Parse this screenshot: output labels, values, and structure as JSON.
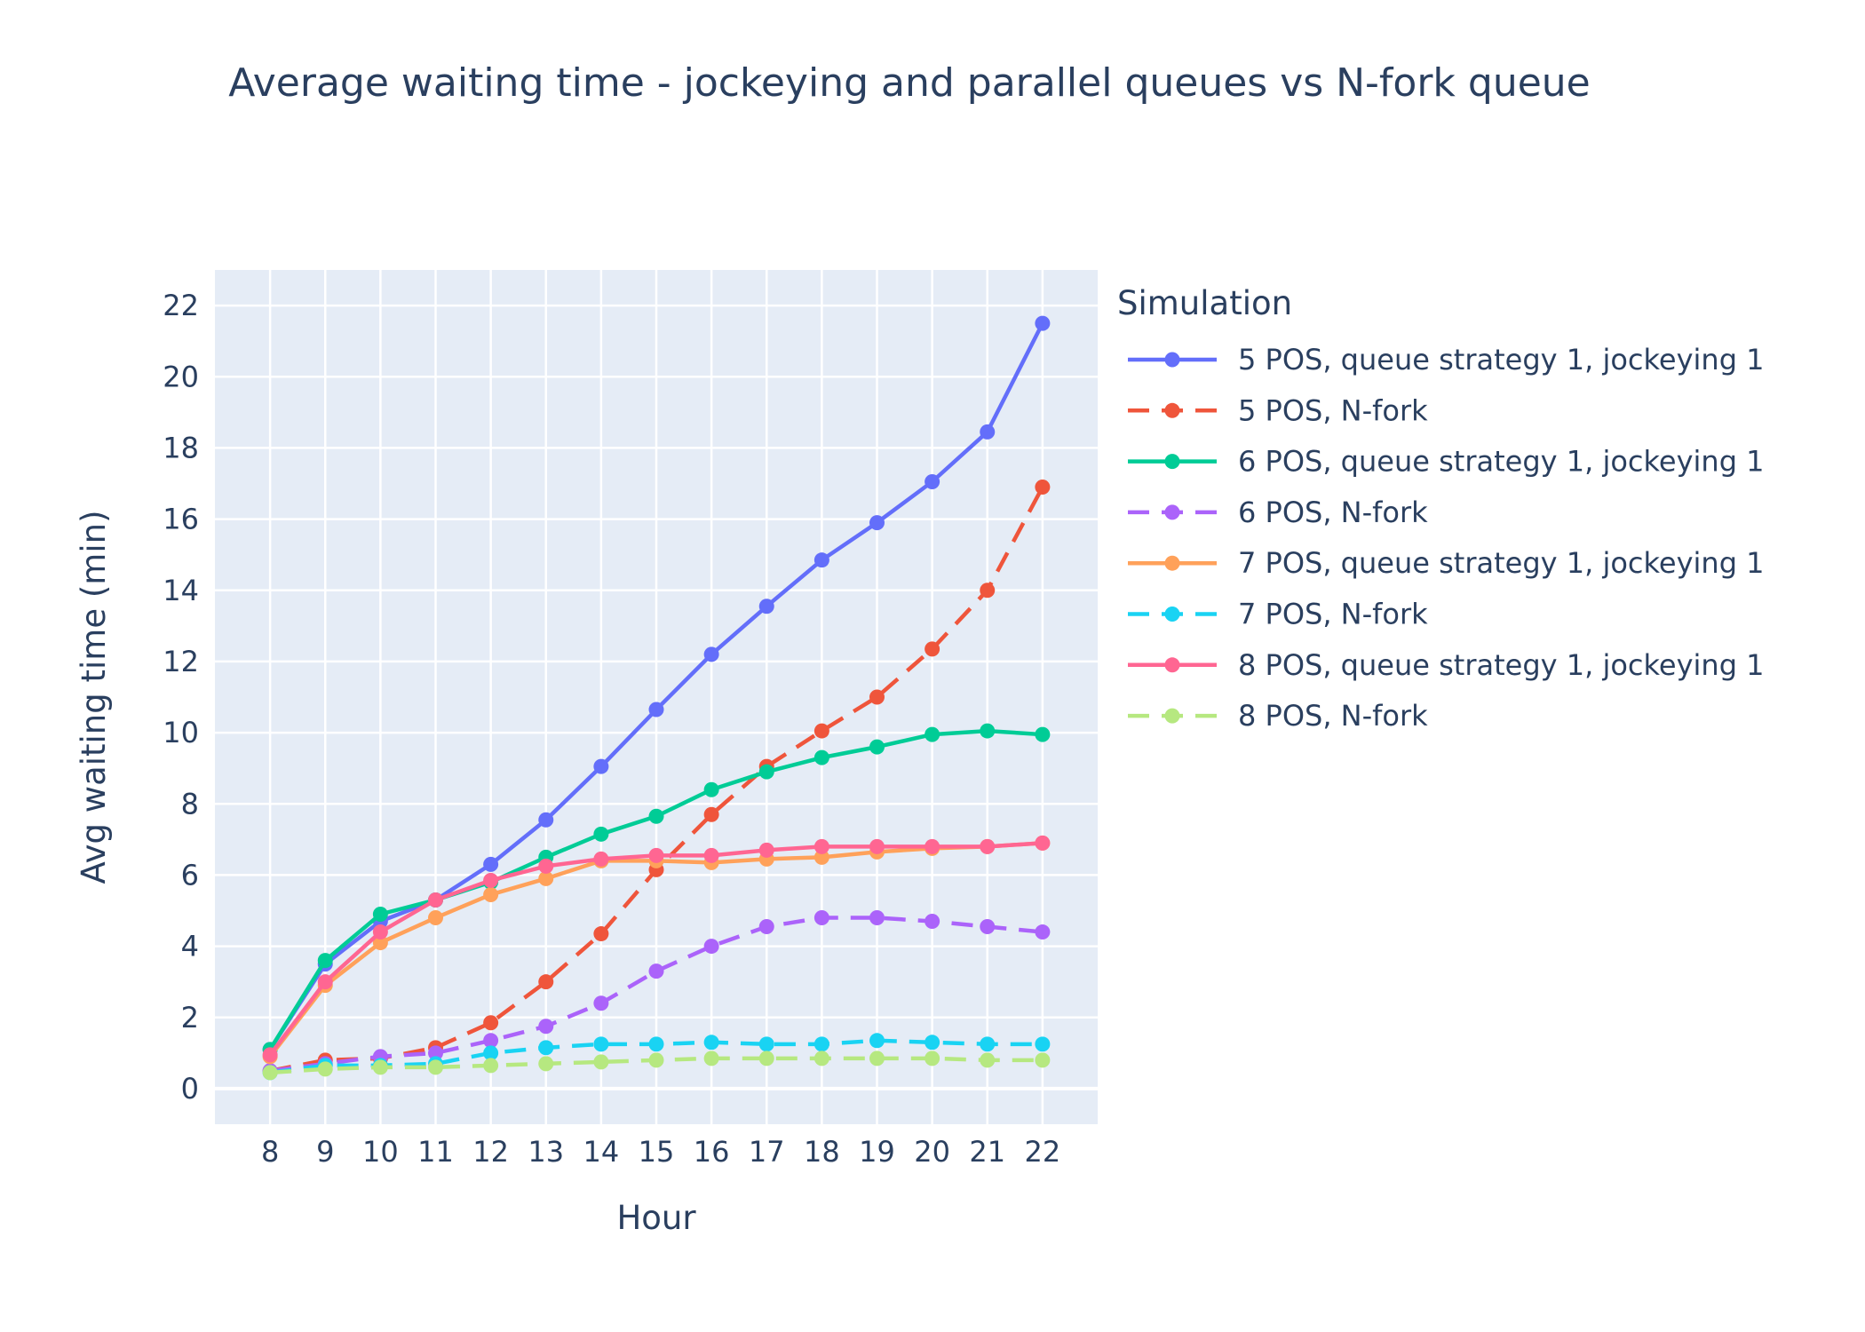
{
  "chart_data": {
    "type": "line",
    "title": "Average waiting time - jockeying and parallel queues vs N-fork queue",
    "xlabel": "Hour",
    "ylabel": "Avg waiting time (min)",
    "x": [
      8,
      9,
      10,
      11,
      12,
      13,
      14,
      15,
      16,
      17,
      18,
      19,
      20,
      21,
      22
    ],
    "xlim": [
      7.0,
      23.0
    ],
    "ylim": [
      -1.0,
      23.0
    ],
    "yticks": [
      0,
      2,
      4,
      6,
      8,
      10,
      12,
      14,
      16,
      18,
      20,
      22
    ],
    "grid": true,
    "legend_title": "Simulation",
    "legend_position": "right",
    "series": [
      {
        "name": "5 POS, queue strategy 1, jockeying 1",
        "color": "#636efa",
        "dash": "solid",
        "values": [
          1.1,
          3.5,
          4.7,
          5.3,
          6.3,
          7.55,
          9.05,
          10.65,
          12.2,
          13.55,
          14.85,
          15.9,
          17.05,
          18.45,
          21.5
        ]
      },
      {
        "name": "5 POS, N-fork",
        "color": "#ef553b",
        "dash": "dash",
        "values": [
          0.5,
          0.8,
          0.85,
          1.15,
          1.85,
          3.0,
          4.35,
          6.15,
          7.7,
          9.05,
          10.05,
          11.0,
          12.35,
          14.0,
          16.9
        ]
      },
      {
        "name": "6 POS, queue strategy 1, jockeying 1",
        "color": "#00cc96",
        "dash": "solid",
        "values": [
          1.1,
          3.6,
          4.9,
          5.3,
          5.8,
          6.5,
          7.15,
          7.65,
          8.4,
          8.9,
          9.3,
          9.6,
          9.95,
          10.05,
          9.95
        ]
      },
      {
        "name": "6 POS, N-fork",
        "color": "#ab63fa",
        "dash": "dash",
        "values": [
          0.5,
          0.7,
          0.9,
          1.0,
          1.35,
          1.75,
          2.4,
          3.3,
          4.0,
          4.55,
          4.8,
          4.8,
          4.7,
          4.55,
          4.4
        ]
      },
      {
        "name": "7 POS, queue strategy 1, jockeying 1",
        "color": "#ffa15a",
        "dash": "solid",
        "values": [
          0.9,
          2.9,
          4.1,
          4.8,
          5.45,
          5.9,
          6.4,
          6.4,
          6.35,
          6.45,
          6.5,
          6.65,
          6.75,
          6.8,
          6.9
        ]
      },
      {
        "name": "7 POS, N-fork",
        "color": "#19d3f3",
        "dash": "dash",
        "values": [
          0.45,
          0.65,
          0.65,
          0.7,
          1.0,
          1.15,
          1.25,
          1.25,
          1.3,
          1.25,
          1.25,
          1.35,
          1.3,
          1.25,
          1.25
        ]
      },
      {
        "name": "8 POS, queue strategy 1, jockeying 1",
        "color": "#ff6692",
        "dash": "solid",
        "values": [
          0.95,
          3.0,
          4.4,
          5.3,
          5.85,
          6.25,
          6.45,
          6.55,
          6.55,
          6.7,
          6.8,
          6.8,
          6.8,
          6.8,
          6.9
        ]
      },
      {
        "name": "8 POS, N-fork",
        "color": "#b6e880",
        "dash": "dash",
        "values": [
          0.45,
          0.55,
          0.6,
          0.6,
          0.65,
          0.7,
          0.75,
          0.8,
          0.85,
          0.85,
          0.85,
          0.85,
          0.85,
          0.8,
          0.8
        ]
      }
    ]
  }
}
